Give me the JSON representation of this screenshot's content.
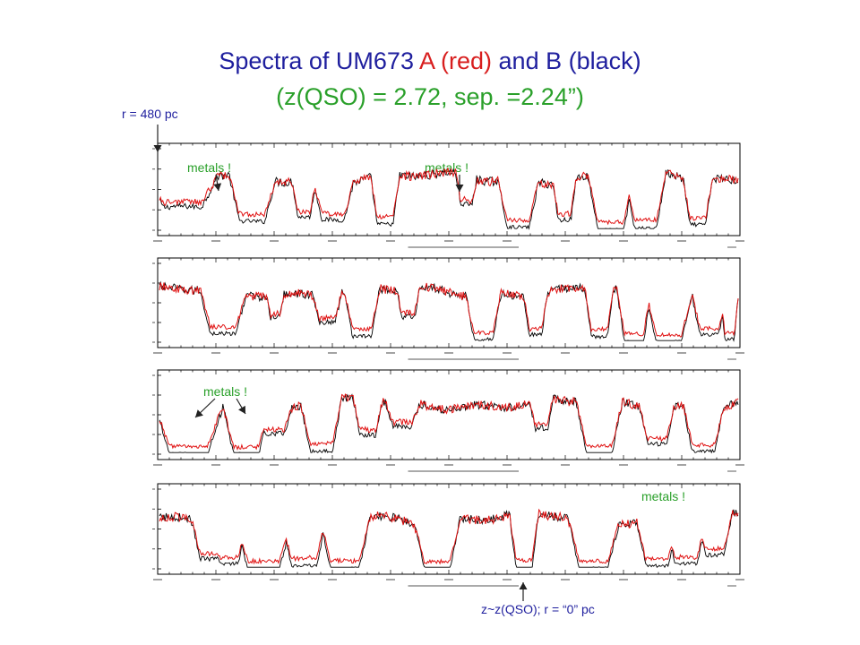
{
  "title": {
    "part_object": "Spectra of UM673",
    "part_a": "A (red)",
    "part_and": "and",
    "part_b": "B (black)",
    "subtitle": "(z(QSO) = 2.72, sep. =2.24”)"
  },
  "annotations": {
    "r_top": "r = 480 pc",
    "r_bottom": "z~z(QSO); r = “0”  pc",
    "metals_1": "metals !",
    "metals_2": "metals !",
    "metals_3": "metals !",
    "metals_4": "metals !"
  },
  "colors": {
    "title_blue": "#1f1f9e",
    "title_red": "#d81e1e",
    "subtitle_green": "#2aa02a",
    "annotation_green": "#2aa02a",
    "annotation_blue": "#1f1f9e",
    "series_a": "#e01010",
    "series_b": "#000000"
  },
  "chart_data": [
    {
      "type": "line",
      "panel": 1,
      "series": [
        {
          "name": "A (red)"
        },
        {
          "name": "B (black)"
        }
      ],
      "absorption_troughs": [
        [
          0.04,
          0.06,
          0.55
        ],
        [
          0.16,
          0.04,
          0.8
        ],
        [
          0.25,
          0.02,
          0.7
        ],
        [
          0.3,
          0.035,
          0.75
        ],
        [
          0.39,
          0.025,
          0.85
        ],
        [
          0.53,
          0.018,
          0.5
        ],
        [
          0.62,
          0.035,
          0.9
        ],
        [
          0.7,
          0.02,
          0.75
        ],
        [
          0.78,
          0.04,
          0.95
        ],
        [
          0.84,
          0.035,
          0.92
        ],
        [
          0.93,
          0.025,
          0.85
        ]
      ]
    },
    {
      "type": "line",
      "panel": 2,
      "series": [
        {
          "name": "A (red)"
        },
        {
          "name": "B (black)"
        }
      ],
      "absorption_troughs": [
        [
          0.11,
          0.04,
          0.8
        ],
        [
          0.2,
          0.015,
          0.45
        ],
        [
          0.29,
          0.025,
          0.55
        ],
        [
          0.35,
          0.03,
          0.85
        ],
        [
          0.43,
          0.02,
          0.5
        ],
        [
          0.56,
          0.03,
          0.9
        ],
        [
          0.65,
          0.02,
          0.8
        ],
        [
          0.76,
          0.025,
          0.85
        ],
        [
          0.82,
          0.03,
          0.95
        ],
        [
          0.88,
          0.04,
          0.95
        ],
        [
          0.95,
          0.03,
          0.8
        ],
        [
          0.985,
          0.015,
          0.9
        ]
      ]
    },
    {
      "type": "line",
      "panel": 3,
      "series": [
        {
          "name": "A (red)"
        },
        {
          "name": "B (black)"
        }
      ],
      "absorption_troughs": [
        [
          0.05,
          0.06,
          0.95
        ],
        [
          0.15,
          0.04,
          0.95
        ],
        [
          0.2,
          0.03,
          0.55
        ],
        [
          0.28,
          0.035,
          0.9
        ],
        [
          0.36,
          0.025,
          0.6
        ],
        [
          0.42,
          0.03,
          0.45
        ],
        [
          0.66,
          0.02,
          0.5
        ],
        [
          0.76,
          0.04,
          0.95
        ],
        [
          0.86,
          0.03,
          0.75
        ],
        [
          0.94,
          0.035,
          0.9
        ]
      ]
    },
    {
      "type": "line",
      "panel": 4,
      "series": [
        {
          "name": "A (red)"
        },
        {
          "name": "B (black)"
        }
      ],
      "absorption_troughs": [
        [
          0.09,
          0.035,
          0.75
        ],
        [
          0.12,
          0.03,
          0.85
        ],
        [
          0.18,
          0.05,
          0.95
        ],
        [
          0.25,
          0.04,
          0.9
        ],
        [
          0.32,
          0.045,
          0.95
        ],
        [
          0.48,
          0.04,
          0.95
        ],
        [
          0.63,
          0.025,
          0.95
        ],
        [
          0.75,
          0.045,
          0.95
        ],
        [
          0.86,
          0.035,
          0.9
        ],
        [
          0.91,
          0.035,
          0.85
        ],
        [
          0.96,
          0.03,
          0.7
        ]
      ]
    }
  ]
}
